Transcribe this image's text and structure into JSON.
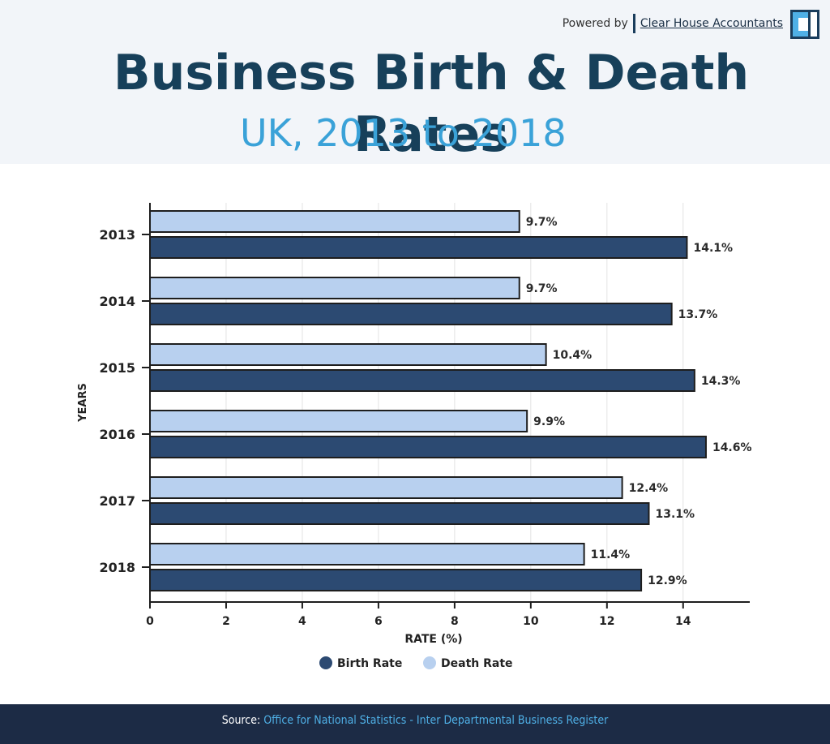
{
  "header": {
    "powered_by": "Powered by",
    "company": "Clear House Accountants",
    "logo_icon": "clear-house-logo-icon"
  },
  "footer": {
    "source_label": "Source:",
    "source_text": "Office for National Statistics - Inter Departmental Business Register"
  },
  "chart_data": {
    "type": "bar",
    "orientation": "horizontal",
    "title": "Business Birth & Death Rates",
    "subtitle": "UK, 2013 to 2018",
    "categories": [
      "2013",
      "2014",
      "2015",
      "2016",
      "2017",
      "2018"
    ],
    "series": [
      {
        "name": "Death Rate",
        "color": "#b8d0ef",
        "values": [
          9.7,
          9.7,
          10.4,
          9.9,
          12.4,
          11.4
        ],
        "labels": [
          "9.7%",
          "9.7%",
          "10.4%",
          "9.9%",
          "12.4%",
          "11.4%"
        ]
      },
      {
        "name": "Birth Rate",
        "color": "#2c4a72",
        "values": [
          14.1,
          13.7,
          14.3,
          14.6,
          13.1,
          12.9
        ],
        "labels": [
          "14.1%",
          "13.7%",
          "14.3%",
          "14.6%",
          "13.1%",
          "12.9%"
        ]
      }
    ],
    "legend": [
      {
        "name": "Birth Rate",
        "color": "#2c4a72"
      },
      {
        "name": "Death Rate",
        "color": "#b8d0ef"
      }
    ],
    "xlabel": "RATE (%)",
    "ylabel": "YEARS",
    "xlim": [
      0,
      15.75
    ],
    "xticks": [
      0,
      2,
      4,
      6,
      8,
      10,
      12,
      14
    ],
    "grid": true,
    "legend_position": "bottom-center"
  }
}
